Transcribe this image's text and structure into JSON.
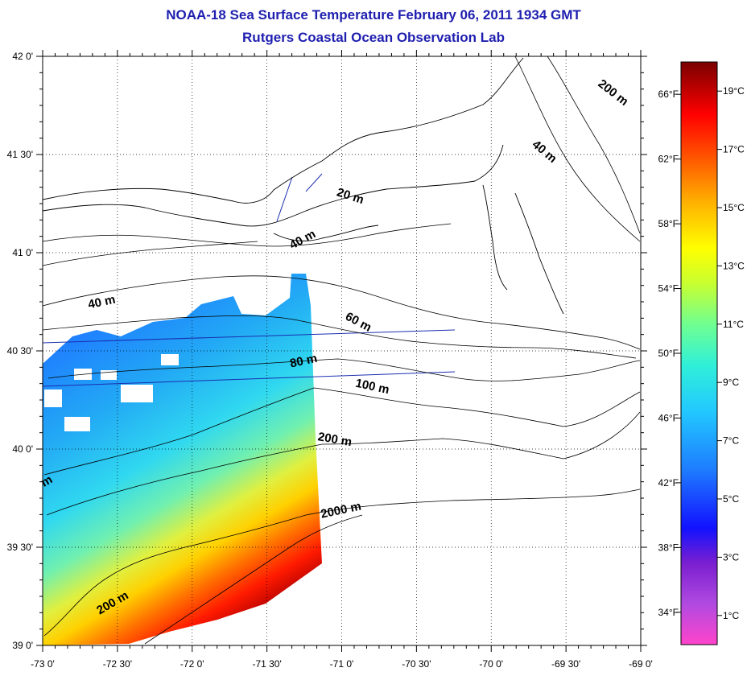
{
  "header": {
    "title": "NOAA-18 Sea Surface Temperature February 06, 2011 1934 GMT",
    "subtitle": "Rutgers Coastal Ocean Observation Lab"
  },
  "map": {
    "lat_labels": [
      "42 0'",
      "41 30'",
      "41 0'",
      "40 30'",
      "40 0'",
      "39 30'",
      "39 0'"
    ],
    "lon_labels": [
      "-73 0'",
      "-72 30'",
      "-72 0'",
      "-71 30'",
      "-71 0'",
      "-70 30'",
      "-70 0'",
      "-69 30'",
      "-69 0'"
    ],
    "lon_range": [
      -73,
      -69
    ],
    "lat_range": [
      39,
      42
    ],
    "gridlines": "dotted",
    "isobath_labels": [
      {
        "text": "200 m",
        "lon": -69.2,
        "lat": 41.8,
        "rot": 38
      },
      {
        "text": "40 m",
        "lon": -69.66,
        "lat": 41.5,
        "rot": 40
      },
      {
        "text": "20 m",
        "lon": -70.95,
        "lat": 41.27,
        "rot": 18
      },
      {
        "text": "40 m",
        "lon": -71.25,
        "lat": 41.05,
        "rot": -28
      },
      {
        "text": "40 m",
        "lon": -72.6,
        "lat": 40.73,
        "rot": -12
      },
      {
        "text": "60 m",
        "lon": -70.9,
        "lat": 40.63,
        "rot": 28
      },
      {
        "text": "80 m",
        "lon": -71.25,
        "lat": 40.43,
        "rot": -12
      },
      {
        "text": "100 m",
        "lon": -70.8,
        "lat": 40.3,
        "rot": 12
      },
      {
        "text": "200 m",
        "lon": -71.05,
        "lat": 40.03,
        "rot": 10
      },
      {
        "text": "2000 m",
        "lon": -71.0,
        "lat": 39.67,
        "rot": -12
      },
      {
        "text": "200 m",
        "lon": -72.52,
        "lat": 39.2,
        "rot": -30
      },
      {
        "text": "m",
        "lon": -72.96,
        "lat": 39.82,
        "rot": -30
      }
    ]
  },
  "colorbar": {
    "celsius_labels": [
      "19°C",
      "17°C",
      "15°C",
      "13°C",
      "11°C",
      "9°C",
      "7°C",
      "5°C",
      "3°C",
      "1°C"
    ],
    "fahrenheit_labels": [
      "66°F",
      "62°F",
      "58°F",
      "54°F",
      "50°F",
      "46°F",
      "42°F",
      "38°F",
      "34°F"
    ],
    "range_c": [
      0,
      20
    ],
    "colors": [
      "#ff44cc",
      "#8a2be2",
      "#1010ff",
      "#1e90ff",
      "#30d8ff",
      "#40f0c0",
      "#a0ff40",
      "#ffff00",
      "#ffa500",
      "#ff2000",
      "#800000"
    ]
  }
}
